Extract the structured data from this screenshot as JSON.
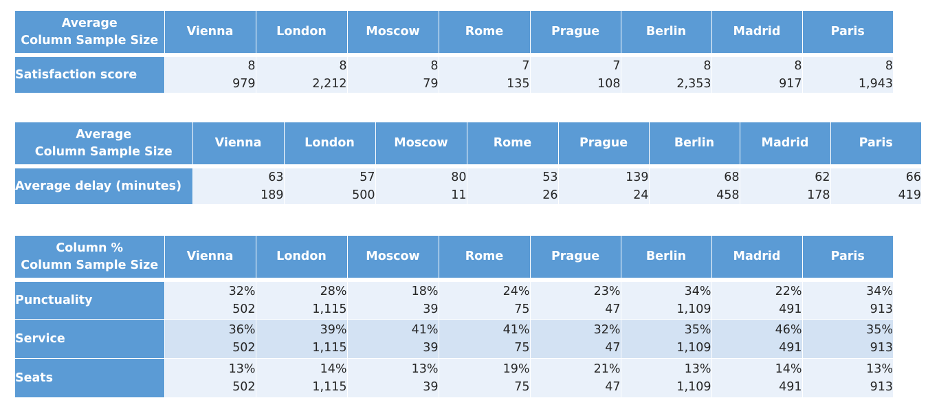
{
  "cities": [
    "Vienna",
    "London",
    "Moscow",
    "Rome",
    "Prague",
    "Berlin",
    "Madrid",
    "Paris"
  ],
  "table1": {
    "corner": [
      "Average",
      "Column Sample Size"
    ],
    "rows": [
      {
        "label": "Satisfaction score",
        "values": [
          "8",
          "8",
          "8",
          "7",
          "7",
          "8",
          "8",
          "8"
        ],
        "samples": [
          "979",
          "2,212",
          "79",
          "135",
          "108",
          "2,353",
          "917",
          "1,943"
        ]
      }
    ]
  },
  "table2": {
    "corner": [
      "Average",
      "Column Sample Size"
    ],
    "rows": [
      {
        "label": "Average delay (minutes)",
        "values": [
          "63",
          "57",
          "80",
          "53",
          "139",
          "68",
          "62",
          "66"
        ],
        "samples": [
          "189",
          "500",
          "11",
          "26",
          "24",
          "458",
          "178",
          "419"
        ]
      }
    ]
  },
  "table3": {
    "corner": [
      "Column %",
      "Column Sample Size"
    ],
    "rows": [
      {
        "label": "Punctuality",
        "values": [
          "32%",
          "28%",
          "18%",
          "24%",
          "23%",
          "34%",
          "22%",
          "34%"
        ],
        "samples": [
          "502",
          "1,115",
          "39",
          "75",
          "47",
          "1,109",
          "491",
          "913"
        ]
      },
      {
        "label": "Service",
        "values": [
          "36%",
          "39%",
          "41%",
          "41%",
          "32%",
          "35%",
          "46%",
          "35%"
        ],
        "samples": [
          "502",
          "1,115",
          "39",
          "75",
          "47",
          "1,109",
          "491",
          "913"
        ]
      },
      {
        "label": "Seats",
        "values": [
          "13%",
          "14%",
          "13%",
          "19%",
          "21%",
          "13%",
          "14%",
          "13%"
        ],
        "samples": [
          "502",
          "1,115",
          "39",
          "75",
          "47",
          "1,109",
          "491",
          "913"
        ]
      }
    ]
  }
}
